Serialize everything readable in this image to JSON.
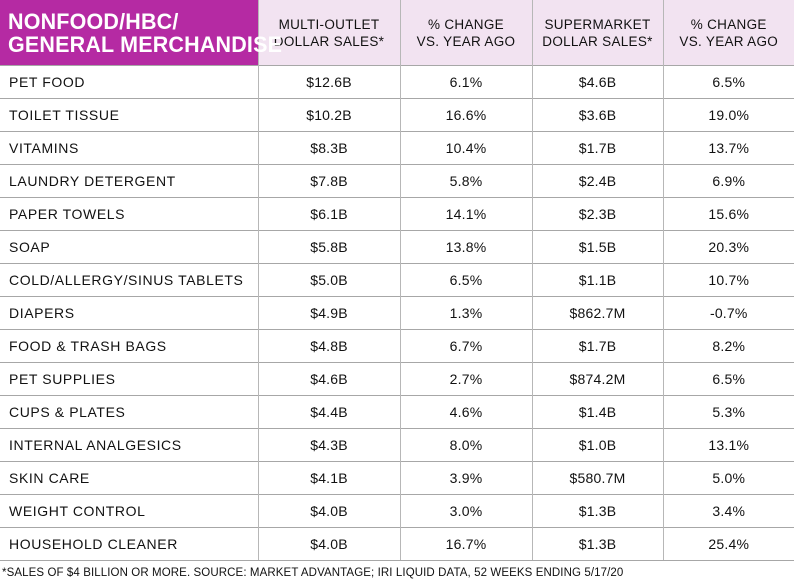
{
  "header": {
    "title_line1": "NONFOOD/HBC/",
    "title_line2": "GENERAL MERCHANDISE",
    "col1_line1": "MULTI-OUTLET",
    "col1_line2": "DOLLAR SALES*",
    "col2_line1": "% CHANGE",
    "col2_line2": "VS. YEAR AGO",
    "col3_line1": "SUPERMARKET",
    "col3_line2": "DOLLAR SALES*",
    "col4_line1": "% CHANGE",
    "col4_line2": "VS. YEAR AGO"
  },
  "rows": [
    {
      "category": "PET FOOD",
      "multi_outlet_sales": "$12.6B",
      "multi_outlet_change": "6.1%",
      "supermarket_sales": "$4.6B",
      "supermarket_change": "6.5%"
    },
    {
      "category": "TOILET TISSUE",
      "multi_outlet_sales": "$10.2B",
      "multi_outlet_change": "16.6%",
      "supermarket_sales": "$3.6B",
      "supermarket_change": "19.0%"
    },
    {
      "category": "VITAMINS",
      "multi_outlet_sales": "$8.3B",
      "multi_outlet_change": "10.4%",
      "supermarket_sales": "$1.7B",
      "supermarket_change": "13.7%"
    },
    {
      "category": "LAUNDRY DETERGENT",
      "multi_outlet_sales": "$7.8B",
      "multi_outlet_change": "5.8%",
      "supermarket_sales": "$2.4B",
      "supermarket_change": "6.9%"
    },
    {
      "category": "PAPER TOWELS",
      "multi_outlet_sales": "$6.1B",
      "multi_outlet_change": "14.1%",
      "supermarket_sales": "$2.3B",
      "supermarket_change": "15.6%"
    },
    {
      "category": "SOAP",
      "multi_outlet_sales": "$5.8B",
      "multi_outlet_change": "13.8%",
      "supermarket_sales": "$1.5B",
      "supermarket_change": "20.3%"
    },
    {
      "category": "COLD/ALLERGY/SINUS TABLETS",
      "multi_outlet_sales": "$5.0B",
      "multi_outlet_change": "6.5%",
      "supermarket_sales": "$1.1B",
      "supermarket_change": "10.7%"
    },
    {
      "category": "DIAPERS",
      "multi_outlet_sales": "$4.9B",
      "multi_outlet_change": "1.3%",
      "supermarket_sales": "$862.7M",
      "supermarket_change": "-0.7%"
    },
    {
      "category": "FOOD & TRASH BAGS",
      "multi_outlet_sales": "$4.8B",
      "multi_outlet_change": "6.7%",
      "supermarket_sales": "$1.7B",
      "supermarket_change": "8.2%"
    },
    {
      "category": "PET SUPPLIES",
      "multi_outlet_sales": "$4.6B",
      "multi_outlet_change": "2.7%",
      "supermarket_sales": "$874.2M",
      "supermarket_change": "6.5%"
    },
    {
      "category": "CUPS & PLATES",
      "multi_outlet_sales": "$4.4B",
      "multi_outlet_change": "4.6%",
      "supermarket_sales": "$1.4B",
      "supermarket_change": "5.3%"
    },
    {
      "category": "INTERNAL ANALGESICS",
      "multi_outlet_sales": "$4.3B",
      "multi_outlet_change": "8.0%",
      "supermarket_sales": "$1.0B",
      "supermarket_change": "13.1%"
    },
    {
      "category": "SKIN CARE",
      "multi_outlet_sales": "$4.1B",
      "multi_outlet_change": "3.9%",
      "supermarket_sales": "$580.7M",
      "supermarket_change": "5.0%"
    },
    {
      "category": "WEIGHT CONTROL",
      "multi_outlet_sales": "$4.0B",
      "multi_outlet_change": "3.0%",
      "supermarket_sales": "$1.3B",
      "supermarket_change": "3.4%"
    },
    {
      "category": "HOUSEHOLD CLEANER",
      "multi_outlet_sales": "$4.0B",
      "multi_outlet_change": "16.7%",
      "supermarket_sales": "$1.3B",
      "supermarket_change": "25.4%"
    }
  ],
  "footnote": "*SALES OF $4 BILLION OR MORE.   SOURCE: MARKET ADVANTAGE; IRI LIQUID DATA, 52 WEEKS ENDING 5/17/20",
  "colors": {
    "title_bg": "#b52aa3",
    "header_bg": "#f2e3f1"
  }
}
